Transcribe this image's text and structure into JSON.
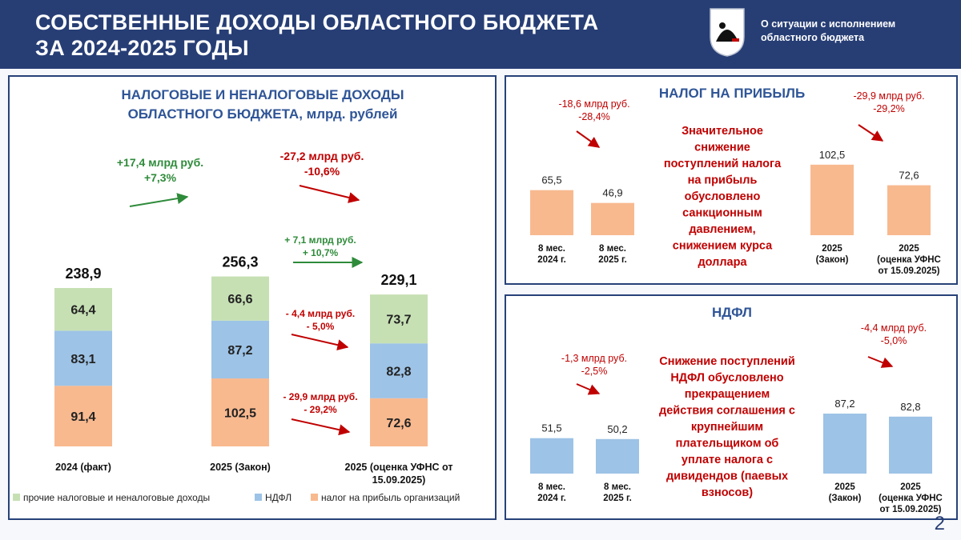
{
  "header": {
    "title_line1": "СОБСТВЕННЫЕ ДОХОДЫ ОБЛАСТНОГО БЮДЖЕТА",
    "title_line2": "ЗА 2024-2025 ГОДЫ",
    "subtitle_line1": "О ситуации с исполнением",
    "subtitle_line2": "областного бюджета",
    "emblem_icon": "coat-of-arms-icon"
  },
  "page_number": "2",
  "colors": {
    "header_bg": "#273e75",
    "green": "#c6e0b4",
    "blue": "#9dc3e6",
    "orange": "#f8b98f",
    "accent_red": "#c00000",
    "accent_green": "#2e8b3a",
    "title_blue": "#2f5597"
  },
  "chart_data": [
    {
      "type": "stacked-bar",
      "title_line1": "НАЛОГОВЫЕ И НЕНАЛОГОВЫЕ ДОХОДЫ",
      "title_line2": "ОБЛАСТНОГО БЮДЖЕТА, млрд. рублей",
      "category_labels": [
        [
          "2024 (факт)"
        ],
        [
          "2025 (Закон)"
        ],
        [
          "2025 (оценка УФНС от",
          "15.09.2025)"
        ]
      ],
      "totals": [
        "238,9",
        "256,3",
        "229,1"
      ],
      "ylim": [
        0,
        260
      ],
      "series": [
        {
          "name": "налог на прибыль организаций",
          "color": "#f8b98f",
          "values": [
            91.4,
            102.5,
            72.6
          ],
          "labels": [
            "91,4",
            "102,5",
            "72,6"
          ]
        },
        {
          "name": "НДФЛ",
          "color": "#9dc3e6",
          "values": [
            83.1,
            87.2,
            82.8
          ],
          "labels": [
            "83,1",
            "87,2",
            "82,8"
          ]
        },
        {
          "name": "прочие налоговые и неналоговые доходы",
          "color": "#c6e0b4",
          "values": [
            64.4,
            66.6,
            73.7
          ],
          "labels": [
            "64,4",
            "66,6",
            "73,7"
          ]
        }
      ],
      "legend": [
        "прочие налоговые и неналоговые доходы",
        "НДФЛ",
        "налог на прибыль организаций"
      ],
      "annotations": {
        "total_change_1": [
          "+17,4 млрд руб.",
          "+7,3%"
        ],
        "total_change_2": [
          "-27,2 млрд руб.",
          "-10,6%"
        ],
        "other_change": [
          "+ 7,1 млрд руб.",
          "+ 10,7%"
        ],
        "ndfl_change": [
          "- 4,4 млрд руб.",
          "- 5,0%"
        ],
        "profit_change": [
          "- 29,9 млрд руб.",
          "- 29,2%"
        ]
      }
    },
    {
      "type": "bar",
      "title": "НАЛОГ НА ПРИБЫЛЬ",
      "color": "#f8b98f",
      "ylim": [
        0,
        110
      ],
      "groups": [
        {
          "categories": [
            [
              "8 мес.",
              "2024 г."
            ],
            [
              "8 мес.",
              "2025 г."
            ]
          ],
          "values": [
            65.5,
            46.9
          ],
          "labels": [
            "65,5",
            "46,9"
          ],
          "change": [
            "-18,6 млрд руб.",
            "-28,4%"
          ]
        },
        {
          "categories": [
            [
              "2025",
              "(Закон)"
            ],
            [
              "2025",
              "(оценка УФНС",
              "от 15.09.2025)"
            ]
          ],
          "values": [
            102.5,
            72.6
          ],
          "labels": [
            "102,5",
            "72,6"
          ],
          "change": [
            "-29,9 млрд руб.",
            "-29,2%"
          ]
        }
      ],
      "note": [
        "Значительное",
        "снижение",
        "поступлений налога",
        "на прибыль",
        "обусловлено",
        "санкционным",
        "давлением,",
        "снижением курса",
        "доллара"
      ]
    },
    {
      "type": "bar",
      "title": "НДФЛ",
      "color": "#9dc3e6",
      "ylim": [
        0,
        110
      ],
      "groups": [
        {
          "categories": [
            [
              "8 мес.",
              "2024 г."
            ],
            [
              "8 мес.",
              "2025 г."
            ]
          ],
          "values": [
            51.5,
            50.2
          ],
          "labels": [
            "51,5",
            "50,2"
          ],
          "change": [
            "-1,3 млрд руб.",
            "-2,5%"
          ]
        },
        {
          "categories": [
            [
              "2025",
              "(Закон)"
            ],
            [
              "2025",
              "(оценка УФНС",
              "от 15.09.2025)"
            ]
          ],
          "values": [
            87.2,
            82.8
          ],
          "labels": [
            "87,2",
            "82,8"
          ],
          "change": [
            "-4,4 млрд руб.",
            "-5,0%"
          ]
        }
      ],
      "note": [
        "Снижение поступлений",
        "НДФЛ обусловлено",
        "прекращением",
        "действия соглашения с",
        "крупнейшим",
        "плательщиком об",
        "уплате налога с",
        "дивидендов (паевых",
        "взносов)"
      ]
    }
  ]
}
